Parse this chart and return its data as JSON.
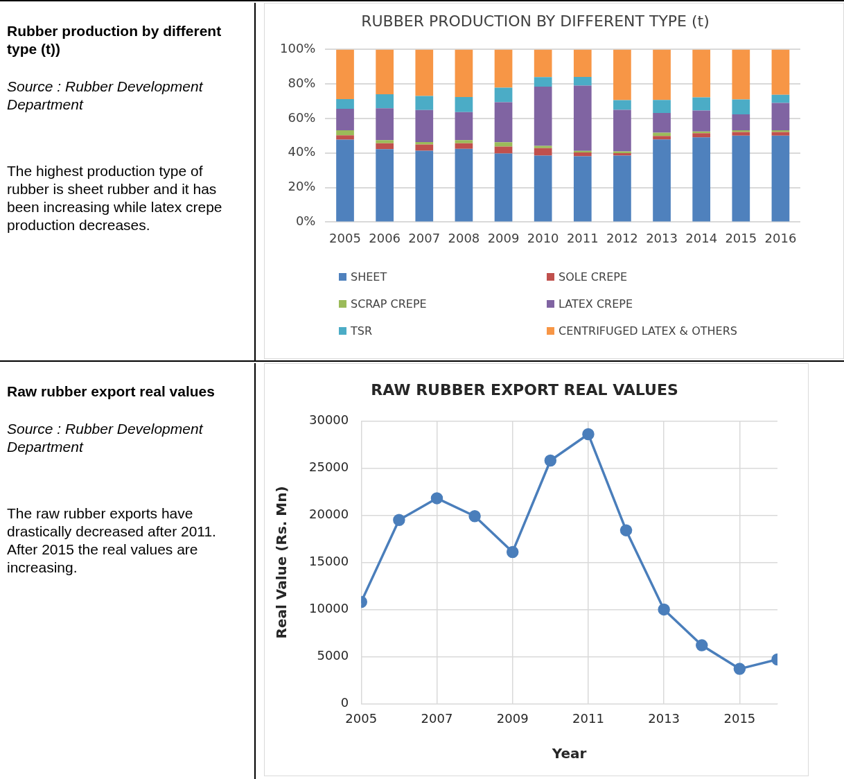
{
  "chart_data": [
    {
      "type": "other",
      "title": "Rubber production by different type (t))",
      "annotations": [
        "Source : Rubber Development Department",
        "The highest production type of rubber is sheet rubber and it has been increasing while latex crepe production decreases."
      ]
    },
    {
      "type": "bar",
      "title": "RUBBER PRODUCTION BY DIFFERENT TYPE (t)",
      "stacked": true,
      "categories": [
        "2005",
        "2006",
        "2007",
        "2008",
        "2009",
        "2010",
        "2011",
        "2012",
        "2013",
        "2014",
        "2015",
        "2016"
      ],
      "series": [
        {
          "name": "SHEET",
          "color": "#4f81bd",
          "values": [
            47.8,
            42.2,
            41.3,
            42.4,
            39.7,
            38.5,
            38.1,
            38.5,
            47.9,
            49.1,
            50.1,
            50.1
          ]
        },
        {
          "name": "SOLE CREPE",
          "color": "#c0504d",
          "values": [
            2.5,
            3.4,
            3.6,
            3.2,
            4.0,
            4.3,
            2.2,
            1.4,
            2.0,
            2.4,
            2.1,
            2.1
          ]
        },
        {
          "name": "SCRAP CREPE",
          "color": "#9bbb59",
          "values": [
            2.9,
            1.8,
            1.4,
            1.9,
            2.5,
            1.3,
            0.9,
            1.0,
            1.9,
            1.0,
            1.0,
            1.0
          ]
        },
        {
          "name": "LATEX CREPE",
          "color": "#8064a2",
          "values": [
            12.4,
            18.5,
            18.6,
            16.2,
            23.2,
            34.4,
            37.9,
            24.1,
            11.4,
            12.1,
            9.2,
            15.8
          ]
        },
        {
          "name": "TSR",
          "color": "#4bacc6",
          "values": [
            5.6,
            8.2,
            8.2,
            8.7,
            8.5,
            5.5,
            5.0,
            5.6,
            7.5,
            7.6,
            8.6,
            4.8
          ]
        },
        {
          "name": "CENTRIFUGED LATEX & OTHERS",
          "color": "#f79646",
          "values": [
            28.8,
            25.9,
            26.9,
            27.6,
            22.1,
            16.0,
            15.9,
            29.4,
            29.3,
            27.8,
            29.0,
            26.2
          ]
        }
      ],
      "ylim": [
        0,
        100
      ],
      "yticks": [
        {
          "value": 0,
          "label": "0%"
        },
        {
          "value": 20,
          "label": "20%"
        },
        {
          "value": 40,
          "label": "40%"
        },
        {
          "value": 60,
          "label": "60%"
        },
        {
          "value": 80,
          "label": "80%"
        },
        {
          "value": 100,
          "label": "100%"
        }
      ],
      "grid": "y",
      "legend": "bottom"
    },
    {
      "type": "other",
      "title": "Raw rubber export real values",
      "annotations": [
        "Source : Rubber Development Department",
        "The raw rubber exports have drastically decreased after 2011.\nAfter 2015 the real values are increasing."
      ]
    },
    {
      "type": "line",
      "title": "RAW RUBBER EXPORT REAL VALUES",
      "xlabel": "Year",
      "ylabel": "Real Value (Rs. Mn)",
      "x": [
        2005,
        2006,
        2007,
        2008,
        2009,
        2010,
        2011,
        2012,
        2013,
        2014,
        2015,
        2016
      ],
      "series": [
        {
          "color": "#4a7ebb",
          "values": [
            10800,
            19500,
            21800,
            19900,
            16100,
            25800,
            28600,
            18400,
            10000,
            6200,
            3700,
            4700
          ]
        }
      ],
      "xlim": [
        2005,
        2016
      ],
      "xticks": [
        2005,
        2007,
        2009,
        2011,
        2013,
        2015
      ],
      "ylim": [
        0,
        30000
      ],
      "yticks": [
        0,
        5000,
        10000,
        15000,
        20000,
        25000,
        30000
      ],
      "grid": true,
      "marker": "circle",
      "line_style": "solid"
    }
  ]
}
